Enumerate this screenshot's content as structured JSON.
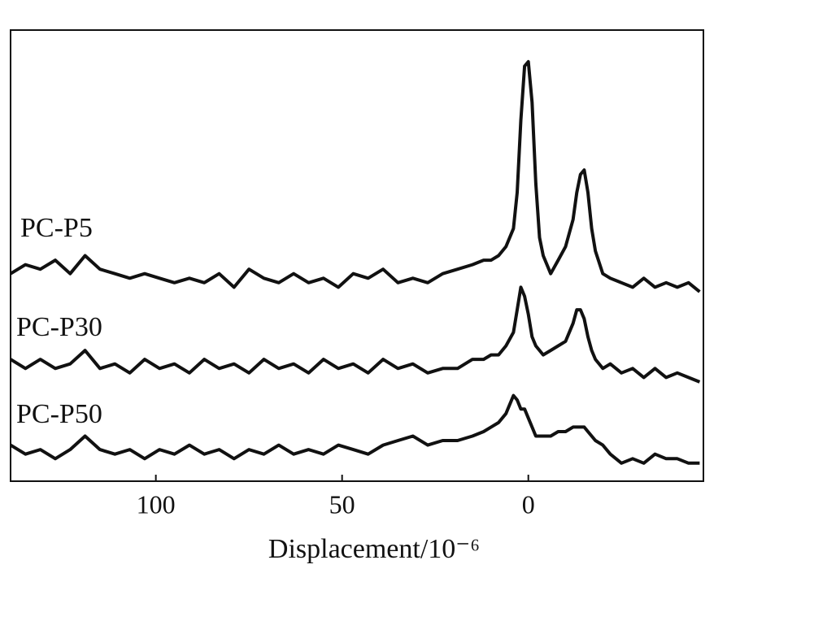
{
  "chart_data": {
    "type": "line",
    "x_label": "Displacement/10⁻⁶",
    "x": [
      139,
      135,
      131,
      127,
      123,
      119,
      115,
      111,
      107,
      103,
      99,
      95,
      91,
      87,
      83,
      79,
      75,
      71,
      67,
      63,
      59,
      55,
      51,
      47,
      43,
      39,
      35,
      31,
      27,
      23,
      19,
      15,
      12,
      10,
      8,
      6,
      4,
      3,
      2,
      1,
      0,
      -1,
      -2,
      -3,
      -4,
      -6,
      -8,
      -10,
      -12,
      -13,
      -14,
      -15,
      -16,
      -17,
      -18,
      -20,
      -22,
      -25,
      -28,
      -31,
      -34,
      -37,
      -40,
      -43,
      -46
    ],
    "series": [
      {
        "name": "PC-P5",
        "color": "#111111",
        "values": [
          46,
          48,
          47,
          49,
          46,
          50,
          47,
          46,
          45,
          46,
          45,
          44,
          45,
          44,
          46,
          43,
          47,
          45,
          44,
          46,
          44,
          45,
          43,
          46,
          45,
          47,
          44,
          45,
          44,
          46,
          47,
          48,
          49,
          49,
          50,
          52,
          56,
          64,
          80,
          92,
          93,
          84,
          66,
          54,
          50,
          46,
          49,
          52,
          58,
          64,
          68,
          69,
          64,
          56,
          51,
          46,
          45,
          44,
          43,
          45,
          43,
          44,
          43,
          44,
          42
        ]
      },
      {
        "name": "PC-P30",
        "color": "#111111",
        "values": [
          27,
          25,
          27,
          25,
          26,
          29,
          25,
          26,
          24,
          27,
          25,
          26,
          24,
          27,
          25,
          26,
          24,
          27,
          25,
          26,
          24,
          27,
          25,
          26,
          24,
          27,
          25,
          26,
          24,
          25,
          25,
          27,
          27,
          28,
          28,
          30,
          33,
          38,
          43,
          41,
          37,
          32,
          30,
          29,
          28,
          29,
          30,
          31,
          35,
          38,
          38,
          36,
          32,
          29,
          27,
          25,
          26,
          24,
          25,
          23,
          25,
          23,
          24,
          23,
          22
        ]
      },
      {
        "name": "PC-P50",
        "color": "#111111",
        "values": [
          8,
          6,
          7,
          5,
          7,
          10,
          7,
          6,
          7,
          5,
          7,
          6,
          8,
          6,
          7,
          5,
          7,
          6,
          8,
          6,
          7,
          6,
          8,
          7,
          6,
          8,
          9,
          10,
          8,
          9,
          9,
          10,
          11,
          12,
          13,
          15,
          19,
          18,
          16,
          16,
          14,
          12,
          10,
          10,
          10,
          10,
          11,
          11,
          12,
          12,
          12,
          12,
          11,
          10,
          9,
          8,
          6,
          4,
          5,
          4,
          6,
          5,
          5,
          4,
          4
        ]
      }
    ],
    "xlim": [
      139,
      -47
    ],
    "xticks": [
      100,
      50,
      0
    ],
    "ylim": [
      0,
      100
    ]
  }
}
